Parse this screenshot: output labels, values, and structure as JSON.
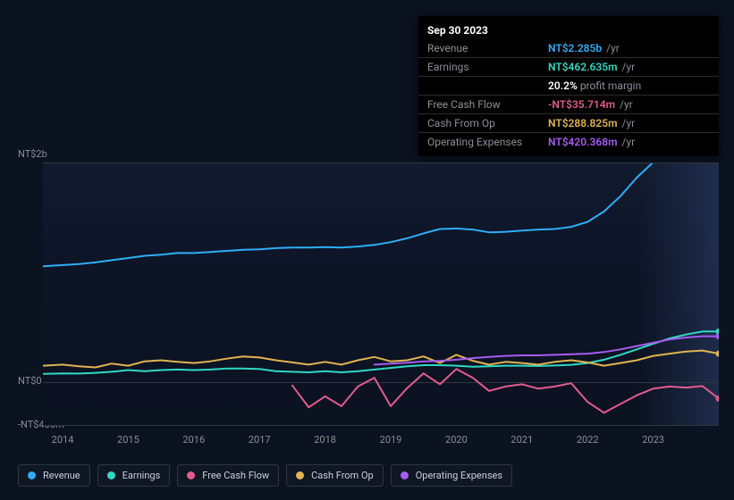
{
  "tooltip": {
    "date": "Sep 30 2023",
    "rows": [
      {
        "key": "Revenue",
        "value": "NT$2.285b",
        "unit": "/yr",
        "color": "#2eaef7"
      },
      {
        "key": "Earnings",
        "value": "NT$462.635m",
        "unit": "/yr",
        "color": "#2fd9c4"
      },
      {
        "key": "",
        "percent": "20.2%",
        "sub_label": "profit margin"
      },
      {
        "key": "Free Cash Flow",
        "value": "-NT$35.714m",
        "unit": "/yr",
        "color": "#e45b8e"
      },
      {
        "key": "Cash From Op",
        "value": "NT$288.825m",
        "unit": "/yr",
        "color": "#e0b450"
      },
      {
        "key": "Operating Expenses",
        "value": "NT$420.368m",
        "unit": "/yr",
        "color": "#a55cf2"
      }
    ]
  },
  "chart": {
    "type": "line",
    "background_color": "#0b1220",
    "grid_color": "#2f3640",
    "y_axis": {
      "labels": [
        "NT$2b",
        "NT$0",
        "-NT$400m"
      ],
      "values": [
        2000,
        0,
        -400
      ],
      "ylim": [
        -400,
        2000
      ]
    },
    "x_axis": {
      "labels": [
        "2014",
        "2015",
        "2016",
        "2017",
        "2018",
        "2019",
        "2020",
        "2021",
        "2022",
        "2023"
      ],
      "xlim": [
        2013.7,
        2024.0
      ]
    },
    "font": {
      "axis_size": 11,
      "axis_color": "#8a8f98"
    },
    "series": [
      {
        "name": "Revenue",
        "color": "#2eaef7",
        "width": 2,
        "points": [
          [
            2013.7,
            1060
          ],
          [
            2014.0,
            1070
          ],
          [
            2014.25,
            1080
          ],
          [
            2014.5,
            1095
          ],
          [
            2014.75,
            1115
          ],
          [
            2015.0,
            1135
          ],
          [
            2015.25,
            1155
          ],
          [
            2015.5,
            1165
          ],
          [
            2015.75,
            1180
          ],
          [
            2016.0,
            1180
          ],
          [
            2016.25,
            1190
          ],
          [
            2016.5,
            1200
          ],
          [
            2016.75,
            1210
          ],
          [
            2017.0,
            1215
          ],
          [
            2017.25,
            1225
          ],
          [
            2017.5,
            1230
          ],
          [
            2017.75,
            1230
          ],
          [
            2018.0,
            1235
          ],
          [
            2018.25,
            1230
          ],
          [
            2018.5,
            1240
          ],
          [
            2018.75,
            1255
          ],
          [
            2019.0,
            1280
          ],
          [
            2019.25,
            1315
          ],
          [
            2019.5,
            1360
          ],
          [
            2019.75,
            1400
          ],
          [
            2020.0,
            1405
          ],
          [
            2020.25,
            1395
          ],
          [
            2020.5,
            1370
          ],
          [
            2020.75,
            1375
          ],
          [
            2021.0,
            1385
          ],
          [
            2021.25,
            1395
          ],
          [
            2021.5,
            1400
          ],
          [
            2021.75,
            1420
          ],
          [
            2022.0,
            1465
          ],
          [
            2022.25,
            1560
          ],
          [
            2022.5,
            1700
          ],
          [
            2022.75,
            1870
          ],
          [
            2023.0,
            2010
          ],
          [
            2023.25,
            2090
          ],
          [
            2023.5,
            2175
          ],
          [
            2023.75,
            2285
          ],
          [
            2024.0,
            2285
          ]
        ]
      },
      {
        "name": "Earnings",
        "color": "#2fd9c4",
        "width": 2,
        "points": [
          [
            2013.7,
            75
          ],
          [
            2014.0,
            80
          ],
          [
            2014.25,
            78
          ],
          [
            2014.5,
            85
          ],
          [
            2014.75,
            95
          ],
          [
            2015.0,
            110
          ],
          [
            2015.25,
            100
          ],
          [
            2015.5,
            110
          ],
          [
            2015.75,
            115
          ],
          [
            2016.0,
            110
          ],
          [
            2016.25,
            115
          ],
          [
            2016.5,
            125
          ],
          [
            2016.75,
            125
          ],
          [
            2017.0,
            120
          ],
          [
            2017.25,
            100
          ],
          [
            2017.5,
            95
          ],
          [
            2017.75,
            90
          ],
          [
            2018.0,
            100
          ],
          [
            2018.25,
            90
          ],
          [
            2018.5,
            100
          ],
          [
            2018.75,
            115
          ],
          [
            2019.0,
            130
          ],
          [
            2019.25,
            145
          ],
          [
            2019.5,
            155
          ],
          [
            2019.75,
            155
          ],
          [
            2020.0,
            150
          ],
          [
            2020.25,
            140
          ],
          [
            2020.5,
            145
          ],
          [
            2020.75,
            150
          ],
          [
            2021.0,
            150
          ],
          [
            2021.25,
            148
          ],
          [
            2021.5,
            152
          ],
          [
            2021.75,
            158
          ],
          [
            2022.0,
            175
          ],
          [
            2022.25,
            205
          ],
          [
            2022.5,
            250
          ],
          [
            2022.75,
            300
          ],
          [
            2023.0,
            350
          ],
          [
            2023.25,
            400
          ],
          [
            2023.5,
            435
          ],
          [
            2023.75,
            463
          ],
          [
            2024.0,
            463
          ]
        ]
      },
      {
        "name": "Free Cash Flow",
        "color": "#e45b8e",
        "width": 2,
        "start_x": 2017.5,
        "points": [
          [
            2017.5,
            -30
          ],
          [
            2017.75,
            -230
          ],
          [
            2018.0,
            -130
          ],
          [
            2018.25,
            -220
          ],
          [
            2018.5,
            -40
          ],
          [
            2018.75,
            40
          ],
          [
            2019.0,
            -220
          ],
          [
            2019.25,
            -55
          ],
          [
            2019.5,
            80
          ],
          [
            2019.75,
            -20
          ],
          [
            2020.0,
            120
          ],
          [
            2020.25,
            40
          ],
          [
            2020.5,
            -80
          ],
          [
            2020.75,
            -40
          ],
          [
            2021.0,
            -20
          ],
          [
            2021.25,
            -60
          ],
          [
            2021.5,
            -40
          ],
          [
            2021.75,
            -10
          ],
          [
            2022.0,
            -180
          ],
          [
            2022.25,
            -280
          ],
          [
            2022.5,
            -200
          ],
          [
            2022.75,
            -120
          ],
          [
            2023.0,
            -60
          ],
          [
            2023.25,
            -40
          ],
          [
            2023.5,
            -50
          ],
          [
            2023.75,
            -36
          ],
          [
            2024.0,
            -150
          ]
        ]
      },
      {
        "name": "Cash From Op",
        "color": "#e0b450",
        "width": 2,
        "points": [
          [
            2013.7,
            150
          ],
          [
            2014.0,
            160
          ],
          [
            2014.25,
            145
          ],
          [
            2014.5,
            135
          ],
          [
            2014.75,
            170
          ],
          [
            2015.0,
            150
          ],
          [
            2015.25,
            190
          ],
          [
            2015.5,
            200
          ],
          [
            2015.75,
            185
          ],
          [
            2016.0,
            175
          ],
          [
            2016.25,
            190
          ],
          [
            2016.5,
            215
          ],
          [
            2016.75,
            235
          ],
          [
            2017.0,
            225
          ],
          [
            2017.25,
            200
          ],
          [
            2017.5,
            180
          ],
          [
            2017.75,
            160
          ],
          [
            2018.0,
            185
          ],
          [
            2018.25,
            160
          ],
          [
            2018.5,
            200
          ],
          [
            2018.75,
            230
          ],
          [
            2019.0,
            190
          ],
          [
            2019.25,
            200
          ],
          [
            2019.5,
            235
          ],
          [
            2019.75,
            175
          ],
          [
            2020.0,
            250
          ],
          [
            2020.25,
            195
          ],
          [
            2020.5,
            160
          ],
          [
            2020.75,
            185
          ],
          [
            2021.0,
            175
          ],
          [
            2021.25,
            160
          ],
          [
            2021.5,
            185
          ],
          [
            2021.75,
            200
          ],
          [
            2022.0,
            180
          ],
          [
            2022.25,
            150
          ],
          [
            2022.5,
            175
          ],
          [
            2022.75,
            200
          ],
          [
            2023.0,
            240
          ],
          [
            2023.25,
            260
          ],
          [
            2023.5,
            280
          ],
          [
            2023.75,
            289
          ],
          [
            2024.0,
            260
          ]
        ]
      },
      {
        "name": "Operating Expenses",
        "color": "#a55cf2",
        "width": 2,
        "start_x": 2018.75,
        "points": [
          [
            2018.75,
            160
          ],
          [
            2019.0,
            170
          ],
          [
            2019.25,
            178
          ],
          [
            2019.5,
            190
          ],
          [
            2019.75,
            195
          ],
          [
            2020.0,
            205
          ],
          [
            2020.25,
            220
          ],
          [
            2020.5,
            230
          ],
          [
            2020.75,
            240
          ],
          [
            2021.0,
            245
          ],
          [
            2021.25,
            245
          ],
          [
            2021.5,
            250
          ],
          [
            2021.75,
            255
          ],
          [
            2022.0,
            260
          ],
          [
            2022.25,
            275
          ],
          [
            2022.5,
            300
          ],
          [
            2022.75,
            330
          ],
          [
            2023.0,
            360
          ],
          [
            2023.25,
            390
          ],
          [
            2023.5,
            408
          ],
          [
            2023.75,
            420
          ],
          [
            2024.0,
            420
          ]
        ]
      }
    ]
  },
  "legend": [
    {
      "label": "Revenue",
      "color": "#2eaef7"
    },
    {
      "label": "Earnings",
      "color": "#2fd9c4"
    },
    {
      "label": "Free Cash Flow",
      "color": "#e45b8e"
    },
    {
      "label": "Cash From Op",
      "color": "#e0b450"
    },
    {
      "label": "Operating Expenses",
      "color": "#a55cf2"
    }
  ]
}
